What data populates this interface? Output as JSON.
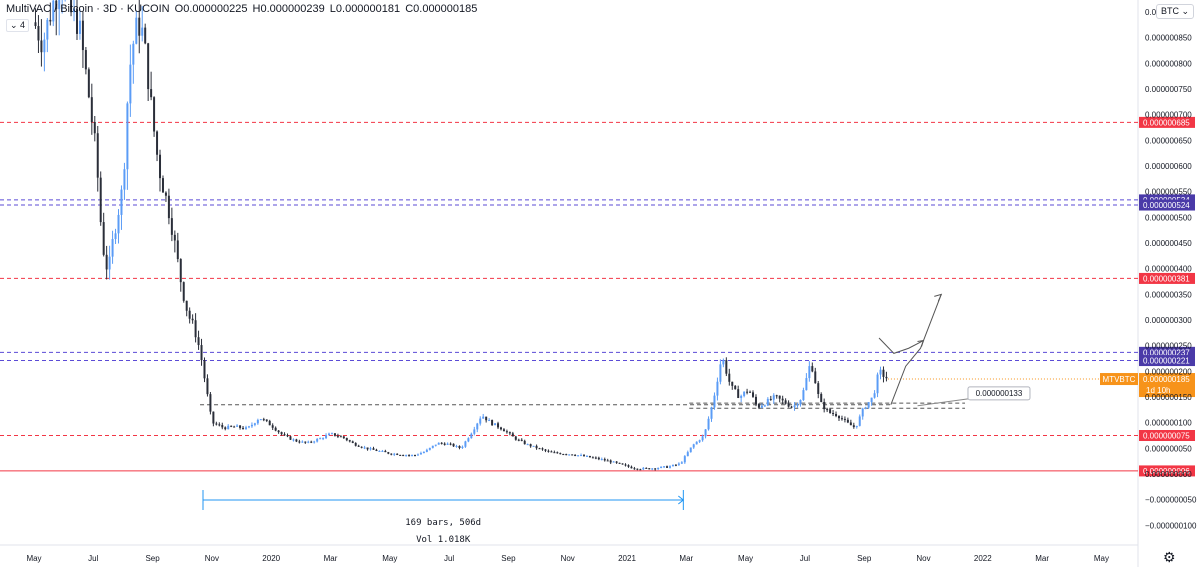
{
  "header": {
    "symbol": "MultiVAC / Bitcoin · 3D · KUCOIN",
    "open": "O0.000000225",
    "high": "H0.000000239",
    "low": "L0.000000181",
    "close": "C0.000000185",
    "indicator_toggle": "⌄ 4"
  },
  "currency_button": "BTC ⌄",
  "settings_icon": "gear-icon",
  "colors": {
    "up": "#5b9cf6",
    "down": "#2a2e39",
    "red_level": "#f23645",
    "purple_level": "#5b4bd6",
    "range_bar": "#2196f3",
    "last_price": "#f7931a"
  },
  "chart_data": {
    "type": "candlestick",
    "price_scale": {
      "ticks": [
        "0.000000900",
        "0.000000850",
        "0.000000800",
        "0.000000750",
        "0.000000700",
        "0.000000650",
        "0.000000600",
        "0.000000550",
        "0.000000500",
        "0.000000450",
        "0.000000400",
        "0.000000350",
        "0.000000300",
        "0.000000250",
        "0.000000200",
        "0.000000150",
        "0.000000100",
        "0.000000050",
        "0.000000000",
        "−0.000000050",
        "−0.000000100"
      ],
      "tick_values": [
        900,
        850,
        800,
        750,
        700,
        650,
        600,
        550,
        500,
        450,
        400,
        350,
        300,
        250,
        200,
        150,
        100,
        50,
        0,
        -50,
        -100
      ]
    },
    "time_scale": {
      "labels": [
        "May",
        "Jul",
        "Sep",
        "Nov",
        "2020",
        "Mar",
        "May",
        "Jul",
        "Sep",
        "Nov",
        "2021",
        "Mar",
        "May",
        "Jul",
        "Sep",
        "Nov",
        "2022",
        "Mar",
        "May"
      ],
      "positions": [
        0,
        2,
        4,
        6,
        8,
        10,
        12,
        14,
        16,
        18,
        20,
        22,
        24,
        26,
        28,
        30,
        32,
        34,
        36
      ]
    },
    "price_levels": [
      {
        "label": "0.000000685",
        "value": 685,
        "style": "red-dashed"
      },
      {
        "label": "0.000000534",
        "value": 534,
        "style": "purple-dashed"
      },
      {
        "label": "0.000000524",
        "value": 524,
        "style": "purple-dashed"
      },
      {
        "label": "0.000000381",
        "value": 381,
        "style": "red-dashed"
      },
      {
        "label": "0.000000237",
        "value": 237,
        "style": "purple-dashed"
      },
      {
        "label": "0.000000221",
        "value": 221,
        "style": "purple-dashed"
      },
      {
        "label": "0.000000075",
        "value": 75,
        "style": "red-dashed"
      },
      {
        "label": "0.000000006",
        "value": 6,
        "style": "red-solid"
      }
    ],
    "last_price": {
      "label": "0.000000185",
      "value": 185,
      "symbol": "MTVBTC",
      "countdown": "1d 10h"
    },
    "support_zone": {
      "upper": 135,
      "lower": 128,
      "callout": "0.000000133"
    },
    "date_range": {
      "start": 5.7,
      "end": 21.9,
      "text1": "169 bars, 506d",
      "text2": "Vol 1.018K"
    },
    "projection": [
      [
        28.9,
        135
      ],
      [
        29.4,
        210
      ],
      [
        29.9,
        245
      ],
      [
        30.6,
        350
      ]
    ],
    "projection_alt": [
      [
        28.5,
        265
      ],
      [
        29.0,
        235
      ],
      [
        29.5,
        245
      ],
      [
        30.0,
        260
      ]
    ],
    "price_series": [
      [
        0.0,
        880
      ],
      [
        0.3,
        840
      ],
      [
        0.6,
        910
      ],
      [
        0.9,
        960
      ],
      [
        1.2,
        900
      ],
      [
        1.5,
        880
      ],
      [
        1.8,
        760
      ],
      [
        2.1,
        620
      ],
      [
        2.3,
        450
      ],
      [
        2.5,
        390
      ],
      [
        2.7,
        470
      ],
      [
        3.0,
        560
      ],
      [
        3.2,
        780
      ],
      [
        3.4,
        860
      ],
      [
        3.6,
        880
      ],
      [
        3.8,
        800
      ],
      [
        4.0,
        690
      ],
      [
        4.2,
        600
      ],
      [
        4.4,
        550
      ],
      [
        4.6,
        500
      ],
      [
        4.8,
        430
      ],
      [
        5.0,
        360
      ],
      [
        5.2,
        310
      ],
      [
        5.4,
        285
      ],
      [
        5.6,
        240
      ],
      [
        5.8,
        170
      ],
      [
        6.0,
        100
      ],
      [
        6.4,
        90
      ],
      [
        6.8,
        92
      ],
      [
        7.2,
        88
      ],
      [
        7.6,
        110
      ],
      [
        8.0,
        95
      ],
      [
        8.4,
        75
      ],
      [
        8.8,
        65
      ],
      [
        9.2,
        60
      ],
      [
        9.6,
        68
      ],
      [
        10.0,
        78
      ],
      [
        10.4,
        72
      ],
      [
        10.8,
        58
      ],
      [
        11.2,
        50
      ],
      [
        11.6,
        45
      ],
      [
        12.0,
        40
      ],
      [
        12.4,
        38
      ],
      [
        12.8,
        36
      ],
      [
        13.2,
        44
      ],
      [
        13.6,
        60
      ],
      [
        14.0,
        58
      ],
      [
        14.4,
        50
      ],
      [
        14.8,
        85
      ],
      [
        15.1,
        115
      ],
      [
        15.4,
        100
      ],
      [
        15.8,
        88
      ],
      [
        16.2,
        70
      ],
      [
        16.6,
        58
      ],
      [
        17.0,
        50
      ],
      [
        17.4,
        42
      ],
      [
        17.8,
        40
      ],
      [
        18.2,
        38
      ],
      [
        18.6,
        34
      ],
      [
        19.0,
        30
      ],
      [
        19.4,
        25
      ],
      [
        19.8,
        18
      ],
      [
        20.2,
        12
      ],
      [
        20.6,
        10
      ],
      [
        21.0,
        12
      ],
      [
        21.4,
        14
      ],
      [
        21.8,
        20
      ],
      [
        22.2,
        55
      ],
      [
        22.6,
        75
      ],
      [
        22.9,
        140
      ],
      [
        23.2,
        230
      ],
      [
        23.5,
        170
      ],
      [
        23.8,
        150
      ],
      [
        24.1,
        165
      ],
      [
        24.4,
        130
      ],
      [
        24.7,
        140
      ],
      [
        25.0,
        150
      ],
      [
        25.3,
        140
      ],
      [
        25.6,
        130
      ],
      [
        25.9,
        150
      ],
      [
        26.2,
        220
      ],
      [
        26.5,
        140
      ],
      [
        26.8,
        120
      ],
      [
        27.1,
        115
      ],
      [
        27.4,
        100
      ],
      [
        27.7,
        90
      ],
      [
        28.0,
        130
      ],
      [
        28.3,
        150
      ],
      [
        28.5,
        200
      ],
      [
        28.8,
        185
      ]
    ]
  }
}
